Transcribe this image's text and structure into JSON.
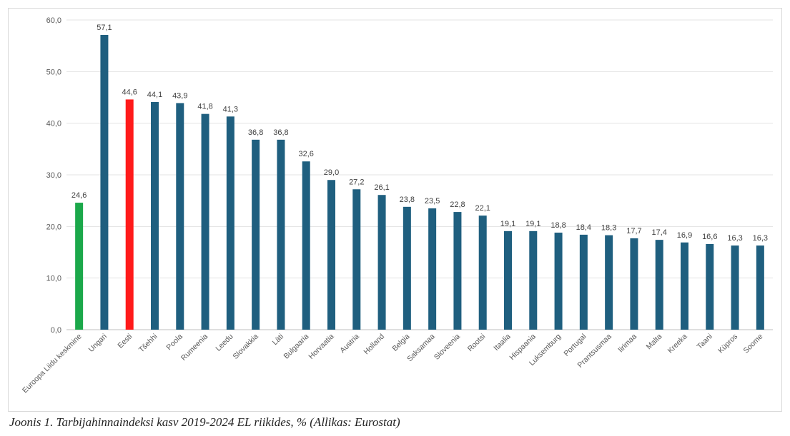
{
  "caption": "Joonis 1. Tarbijahinnaindeksi kasv 2019-2024 EL riikides, % (Allikas: Eurostat)",
  "chart_data": {
    "type": "bar",
    "title": "",
    "xlabel": "",
    "ylabel": "",
    "ylim": [
      0,
      60
    ],
    "yticks": [
      "0,0",
      "10,0",
      "20,0",
      "30,0",
      "40,0",
      "50,0",
      "60,0"
    ],
    "grid": true,
    "legend": "none",
    "categories": [
      "Euroopa Liidu keskmine",
      "Ungari",
      "Eesti",
      "Tšehhi",
      "Poola",
      "Rumeenia",
      "Leedu",
      "Slovakkia",
      "Läti",
      "Bulgaaria",
      "Horvaatia",
      "Austria",
      "Holland",
      "Belgia",
      "Saksamaa",
      "Sloveenia",
      "Rootsi",
      "Itaalia",
      "Hispaania",
      "Luksemburg",
      "Portugal",
      "Prantsusmaa",
      "Iirimaa",
      "Malta",
      "Kreeka",
      "Taani",
      "Küpros",
      "Soome"
    ],
    "values": [
      24.6,
      57.1,
      44.6,
      44.1,
      43.9,
      41.8,
      41.3,
      36.8,
      36.8,
      32.6,
      29.0,
      27.2,
      26.1,
      23.8,
      23.5,
      22.8,
      22.1,
      19.1,
      19.1,
      18.8,
      18.4,
      18.3,
      17.7,
      17.4,
      16.9,
      16.6,
      16.3,
      16.3
    ],
    "value_labels": [
      "24,6",
      "57,1",
      "44,6",
      "44,1",
      "43,9",
      "41,8",
      "41,3",
      "36,8",
      "36,8",
      "32,6",
      "29,0",
      "27,2",
      "26,1",
      "23,8",
      "23,5",
      "22,8",
      "22,1",
      "19,1",
      "19,1",
      "18,8",
      "18,4",
      "18,3",
      "17,7",
      "17,4",
      "16,9",
      "16,6",
      "16,3",
      "16,3"
    ],
    "colors": {
      "default": "#1f5f7f",
      "Euroopa Liidu keskmine": "#1ba84a",
      "Eesti": "#ff1a1a"
    }
  }
}
